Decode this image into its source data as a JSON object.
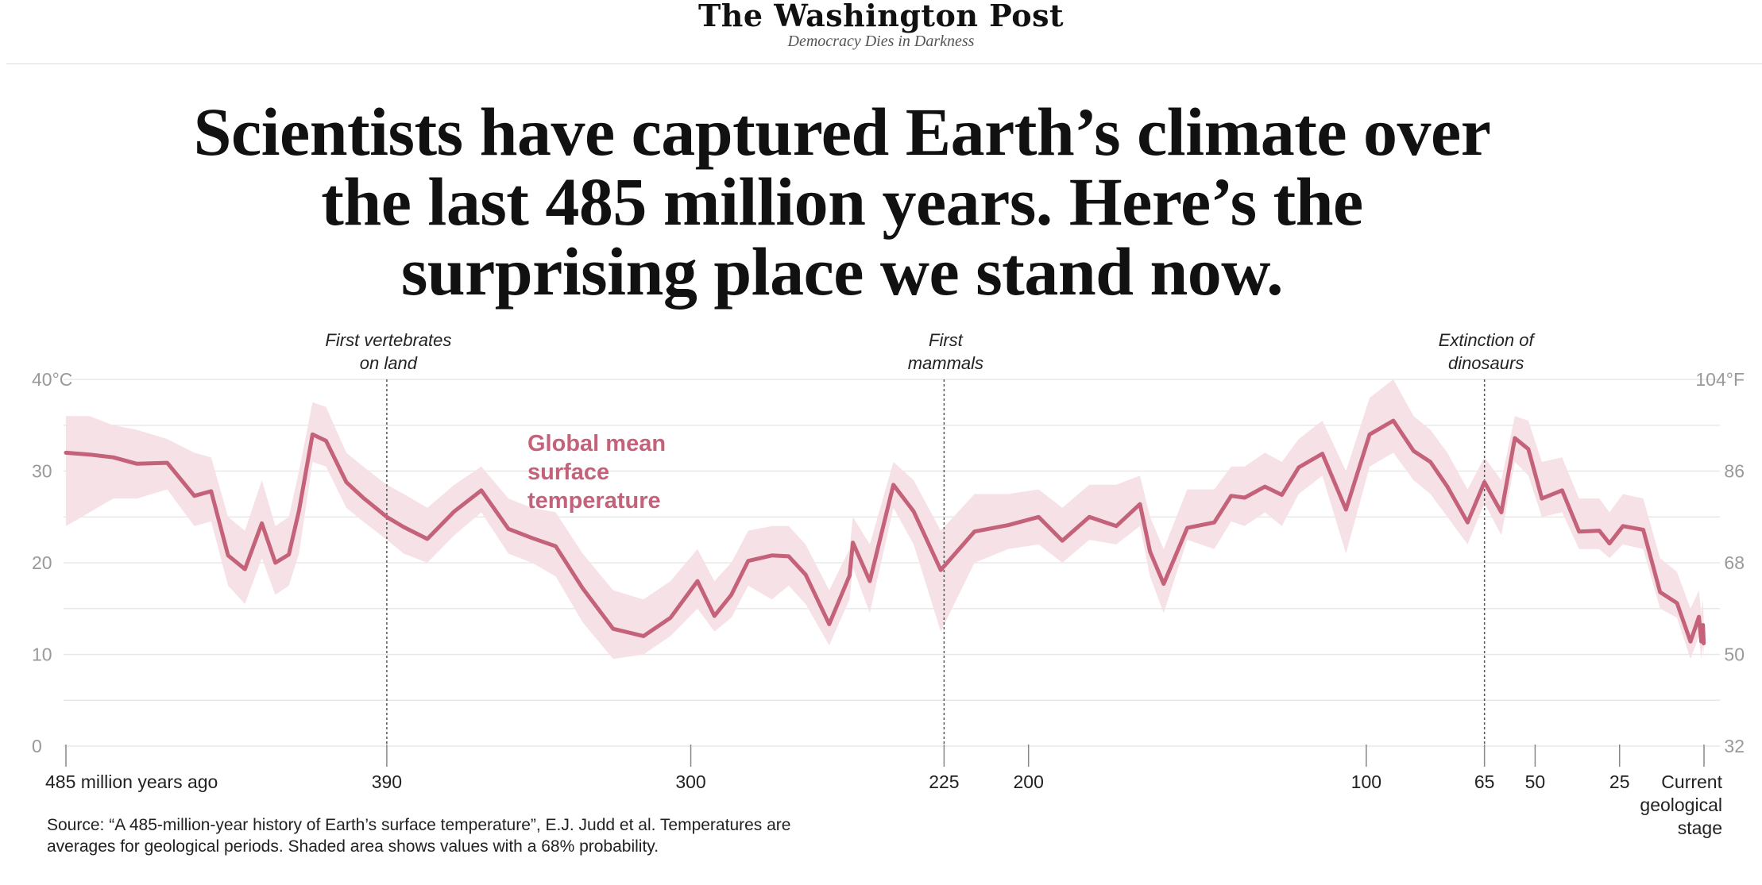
{
  "masthead": {
    "logo": "The Washington Post",
    "tagline": "Democracy Dies in Darkness"
  },
  "headline": {
    "line1": "Scientists have captured Earth’s climate over",
    "line2": "the last 485 million years. Here’s the",
    "line3": "surprising place we stand now."
  },
  "source": {
    "line1": "Source: “A 485-million-year history of Earth’s surface temperature”, E.J. Judd et al. Temperatures are",
    "line2": "averages for geological periods. Shaded area shows values with a 68% probability."
  },
  "colors": {
    "line": "#c4627a",
    "band": "#f6e1e6",
    "grid": "#e8e8e8",
    "axis_text": "#999999",
    "text": "#222222"
  },
  "chart_data": {
    "type": "line",
    "series": [
      {
        "name": "Global mean surface temperature",
        "name_lines": [
          "Global mean",
          "surface",
          "temperature"
        ],
        "x": [
          485,
          478,
          471,
          464,
          455,
          447,
          442,
          437,
          432,
          427,
          423,
          419,
          416,
          412,
          408,
          402,
          397,
          390,
          385,
          378,
          370,
          362,
          354,
          347,
          340,
          332,
          323,
          314,
          306,
          298,
          293,
          288,
          283,
          276,
          271,
          266,
          259,
          253,
          252,
          247,
          240,
          234,
          226,
          216,
          206,
          197,
          190,
          182,
          174,
          167,
          164,
          160,
          153,
          145,
          140,
          136,
          130,
          125,
          120,
          113,
          106,
          99,
          92,
          86,
          81,
          76,
          70,
          65,
          60,
          56,
          52,
          48,
          42,
          37,
          31,
          28,
          24,
          18,
          13,
          8,
          4,
          1.5,
          0.8,
          0.3,
          0.1
        ],
        "y": [
          32,
          31.8,
          31.5,
          30.8,
          30.9,
          27.3,
          27.8,
          20.8,
          19.3,
          24.3,
          20,
          20.9,
          25.7,
          34,
          33.3,
          28.8,
          27.1,
          25,
          23.9,
          22.6,
          25.6,
          27.9,
          23.7,
          22.7,
          21.8,
          17.2,
          12.8,
          12,
          14,
          18,
          14.2,
          16.5,
          20.2,
          20.8,
          20.7,
          18.7,
          13.3,
          18.6,
          22.2,
          18,
          28.5,
          25.6,
          19.2,
          23.4,
          24.1,
          25,
          22.4,
          25,
          24,
          26.4,
          21.2,
          17.7,
          23.8,
          24.4,
          27.3,
          27.1,
          28.3,
          27.4,
          30.4,
          31.9,
          25.8,
          34,
          35.5,
          32.2,
          31,
          28.3,
          24.4,
          28.8,
          25.5,
          33.6,
          32.4,
          27,
          27.9,
          23.4,
          23.5,
          22.1,
          24,
          23.6,
          16.8,
          15.6,
          11.4,
          14.1,
          11.4,
          13.2,
          11.2
        ],
        "upper": [
          36,
          36,
          35,
          34.5,
          33.5,
          32,
          31.5,
          25,
          23.5,
          29,
          24,
          25,
          30,
          37.5,
          37,
          32,
          30.5,
          28.5,
          27.5,
          26,
          28.5,
          30.5,
          27,
          26,
          25.5,
          21,
          17,
          16,
          18,
          21.5,
          18,
          20,
          23.5,
          24,
          24,
          22,
          17,
          21.5,
          25,
          22,
          31,
          29,
          23.5,
          27.5,
          27.5,
          28,
          26,
          28.5,
          28.5,
          29.5,
          25,
          21.5,
          28,
          28,
          30.5,
          30.5,
          32,
          31,
          33.5,
          35.5,
          30,
          38,
          40,
          36,
          34.5,
          32,
          28,
          31.5,
          29,
          36,
          35.5,
          31,
          31.5,
          27,
          27,
          25.5,
          27.5,
          27,
          20.5,
          19,
          15,
          17,
          14.5,
          16,
          14
        ],
        "lower": [
          24,
          25.5,
          27,
          27,
          28,
          24,
          24.5,
          17.5,
          15.5,
          20.5,
          16.5,
          17.5,
          21,
          31,
          30.5,
          26,
          24.5,
          22.5,
          21,
          20,
          23,
          25.5,
          21,
          20,
          18.5,
          13.5,
          9.5,
          10,
          12,
          15,
          12.5,
          14,
          17.5,
          16,
          17.5,
          15.5,
          11,
          16,
          19.5,
          14.5,
          26,
          22,
          12.5,
          20,
          21.5,
          22,
          20,
          22.5,
          22,
          24,
          18.5,
          14.5,
          22.5,
          21.5,
          24.5,
          24,
          25.5,
          24,
          27.5,
          29.5,
          21,
          30.5,
          32,
          29,
          27.5,
          25,
          22,
          26.5,
          23,
          31,
          29.5,
          25,
          25.5,
          21.5,
          21.5,
          20.5,
          22,
          21.5,
          15,
          14,
          9.5,
          12,
          9.5,
          11,
          9.5
        ]
      }
    ],
    "xlim": [
      485,
      0
    ],
    "ylim": [
      0,
      40
    ],
    "y_ticks_left": [
      {
        "value": 40,
        "label": "40°C"
      },
      {
        "value": 30,
        "label": "30"
      },
      {
        "value": 20,
        "label": "20"
      },
      {
        "value": 10,
        "label": "10"
      },
      {
        "value": 0,
        "label": "0"
      }
    ],
    "y_ticks_right": [
      {
        "value": 40,
        "label": "104°F"
      },
      {
        "value": 30,
        "label": "86"
      },
      {
        "value": 20,
        "label": "68"
      },
      {
        "value": 10,
        "label": "50"
      },
      {
        "value": 0,
        "label": "32"
      }
    ],
    "x_ticks": [
      {
        "value": 485,
        "label": "485 million years ago"
      },
      {
        "value": 390,
        "label": "390"
      },
      {
        "value": 300,
        "label": "300"
      },
      {
        "value": 225,
        "label": "225"
      },
      {
        "value": 200,
        "label": "200"
      },
      {
        "value": 100,
        "label": "100"
      },
      {
        "value": 65,
        "label": "65"
      },
      {
        "value": 50,
        "label": "50"
      },
      {
        "value": 25,
        "label": "25"
      },
      {
        "value": 0,
        "label": "Current geological stage",
        "lines": [
          "Current",
          "geological",
          "stage"
        ]
      }
    ],
    "annotations": [
      {
        "x": 390,
        "lines": [
          "First vertebrates",
          "on land"
        ]
      },
      {
        "x": 225,
        "lines": [
          "First",
          "mammals"
        ]
      },
      {
        "x": 65,
        "lines": [
          "Extinction of",
          "dinosaurs"
        ]
      }
    ],
    "grid": true
  }
}
